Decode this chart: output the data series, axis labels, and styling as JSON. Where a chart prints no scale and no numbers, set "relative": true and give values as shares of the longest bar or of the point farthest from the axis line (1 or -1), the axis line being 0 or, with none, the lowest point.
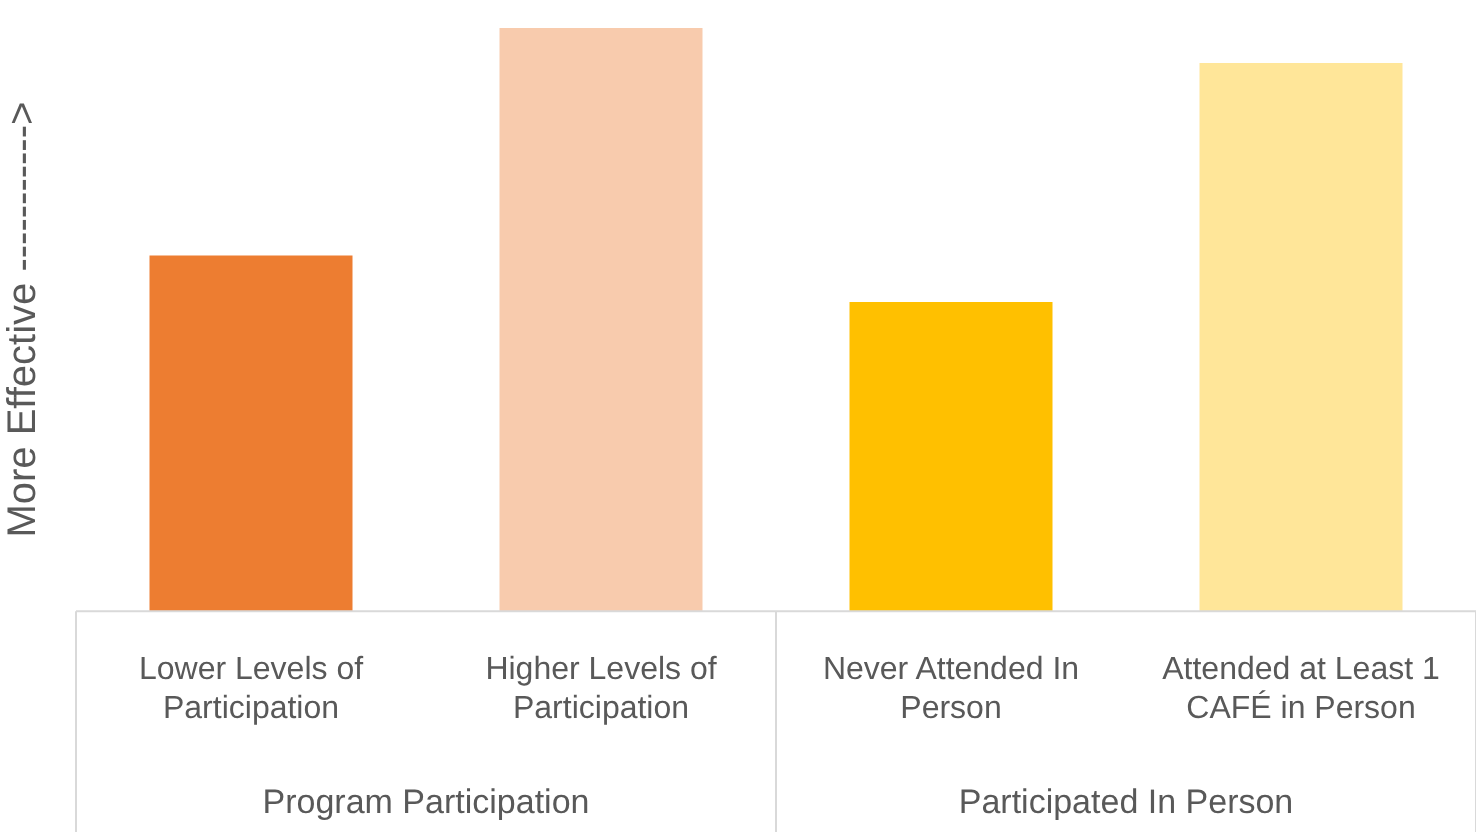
{
  "chart_data": {
    "type": "bar",
    "relative": true,
    "ylabel": "More Effective ----------->",
    "categories": [
      "Lower Levels of Participation",
      "Higher Levels of Participation",
      "Never Attended In Person",
      "Attended at Least 1 CAFÉ in Person"
    ],
    "values": [
      0.61,
      1,
      0.53,
      0.94
    ],
    "colors": [
      "#ed7d31",
      "#f8cbad",
      "#ffc000",
      "#ffe699"
    ],
    "annotations": [
      "Program Participation",
      "Participated In Person"
    ],
    "grid": false,
    "legend": false
  }
}
